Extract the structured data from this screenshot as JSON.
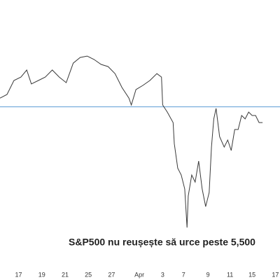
{
  "chart_data": {
    "type": "line",
    "annotation": "S&P500 nu reușește să urce peste 5,500",
    "x": [
      -1.6,
      -1.0,
      -0.4,
      0.2,
      0.7,
      1.1,
      1.7,
      2.3,
      2.9,
      3.5,
      4.1,
      4.7,
      5.3,
      5.9,
      6.5,
      7.1,
      7.7,
      8.3,
      8.9,
      9.5,
      9.7,
      10.1,
      10.7,
      11.3,
      11.9,
      12.3,
      12.4,
      12.8,
      13.3,
      13.4,
      13.7,
      14.0,
      14.3,
      14.5,
      14.6,
      14.9,
      15.2,
      15.5,
      15.8,
      16.1,
      16.4,
      16.6,
      16.8,
      17.0,
      17.3,
      17.7,
      18.0,
      18.3,
      18.6,
      18.9,
      19.2,
      19.5,
      19.8,
      20.1,
      20.4,
      20.7,
      21.0
    ],
    "values": [
      5548,
      5568,
      5645,
      5664,
      5703,
      5626,
      5645,
      5664,
      5703,
      5664,
      5633,
      5741,
      5772,
      5780,
      5761,
      5734,
      5722,
      5683,
      5606,
      5548,
      5510,
      5595,
      5618,
      5645,
      5683,
      5664,
      5510,
      5471,
      5413,
      5297,
      5162,
      5124,
      5047,
      4834,
      5008,
      5124,
      5085,
      5201,
      5047,
      4950,
      5027,
      5278,
      5433,
      5491,
      5336,
      5278,
      5317,
      5259,
      5375,
      5375,
      5452,
      5433,
      5471,
      5452,
      5452,
      5413,
      5413
    ],
    "color": "#3a3a3a",
    "reference_line": 5500,
    "reference_color": "#5b9bd5",
    "xlim": [
      -1.6,
      22.5
    ],
    "ylim": [
      4545,
      6089
    ],
    "xticks": [
      {
        "value": 0,
        "label": "17"
      },
      {
        "value": 2,
        "label": "19"
      },
      {
        "value": 4,
        "label": "21"
      },
      {
        "value": 6,
        "label": "25"
      },
      {
        "value": 8,
        "label": "27"
      },
      {
        "value": 10.4,
        "label": "Apr"
      },
      {
        "value": 12.4,
        "label": "3"
      },
      {
        "value": 14.2,
        "label": "7"
      },
      {
        "value": 16.3,
        "label": "9"
      },
      {
        "value": 18.2,
        "label": "11"
      },
      {
        "value": 20.1,
        "label": "15"
      },
      {
        "value": 22.1,
        "label": "17"
      }
    ]
  }
}
